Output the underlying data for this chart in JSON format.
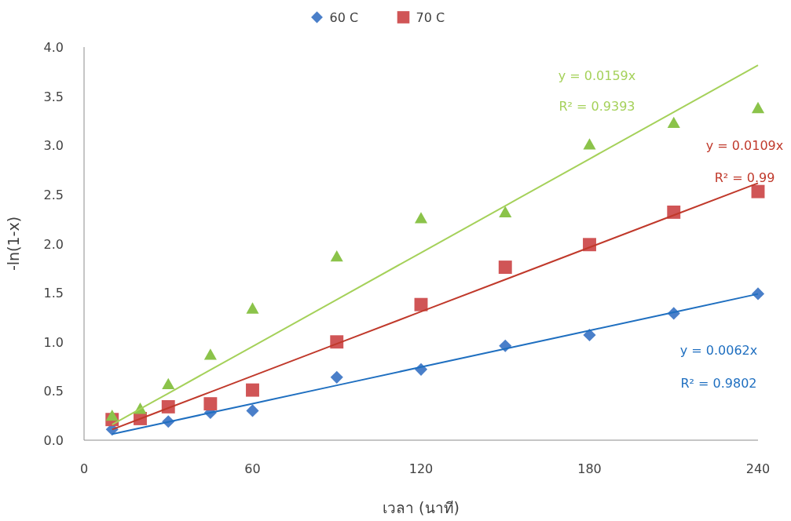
{
  "chart_data": {
    "type": "scatter",
    "xlabel": "เวลา (นาที)",
    "ylabel": "-ln(1-x)",
    "legend": "top",
    "grid": false,
    "xlim": [
      0,
      240
    ],
    "xticks": [
      0,
      60,
      120,
      180,
      240
    ],
    "ylim": [
      0,
      4
    ],
    "yticks": [
      {
        "value": 0,
        "label": "0.0"
      },
      {
        "value": 0.5,
        "label": "0.5"
      },
      {
        "value": 1,
        "label": "1.0"
      },
      {
        "value": 1.5,
        "label": "1.5"
      },
      {
        "value": 2,
        "label": "2.0"
      },
      {
        "value": 2.5,
        "label": "2.5"
      },
      {
        "value": 3,
        "label": "3.0"
      },
      {
        "value": 3.5,
        "label": "3.5"
      },
      {
        "value": 4,
        "label": "4.0"
      }
    ],
    "x": [
      10,
      20,
      30,
      45,
      60,
      90,
      120,
      150,
      180,
      210,
      240
    ],
    "series": [
      {
        "name": "60 C",
        "color": "#4a7fc9",
        "marker": "diamond",
        "values": [
          0.11,
          null,
          0.19,
          0.28,
          0.3,
          0.64,
          0.72,
          0.96,
          1.07,
          1.29,
          1.49
        ]
      },
      {
        "name": "70 C",
        "color": "#d05556",
        "marker": "square",
        "values": [
          0.21,
          0.22,
          0.34,
          0.37,
          0.51,
          1.0,
          1.38,
          1.76,
          1.99,
          2.32,
          2.53
        ]
      },
      {
        "color": "#8bc34a",
        "marker": "triangle",
        "values": [
          0.25,
          0.32,
          0.57,
          0.87,
          1.34,
          1.87,
          2.26,
          2.32,
          3.01,
          3.23,
          3.38
        ]
      },
      {
        "type": "line",
        "color": "#a5d15a",
        "marker": "none",
        "values": [
          0.159,
          0.318,
          0.477,
          0.7155,
          0.954,
          1.431,
          1.908,
          2.385,
          2.862,
          3.339,
          3.816
        ]
      },
      {
        "type": "line",
        "color": "#c0392b",
        "marker": "none",
        "values": [
          0.109,
          0.218,
          0.327,
          0.4905,
          0.654,
          0.981,
          1.308,
          1.635,
          1.962,
          2.289,
          2.616
        ]
      },
      {
        "type": "line",
        "color": "#1f6fc0",
        "marker": "none",
        "values": [
          0.062,
          0.124,
          0.186,
          0.279,
          0.372,
          0.558,
          0.744,
          0.93,
          1.116,
          1.302,
          1.488
        ]
      }
    ],
    "annotations": [
      "y = 0.0159x",
      "R² = 0.9393",
      "y = 0.0109x",
      "R² = 0.99",
      "y = 0.0062x",
      "R² = 0.9802"
    ]
  }
}
